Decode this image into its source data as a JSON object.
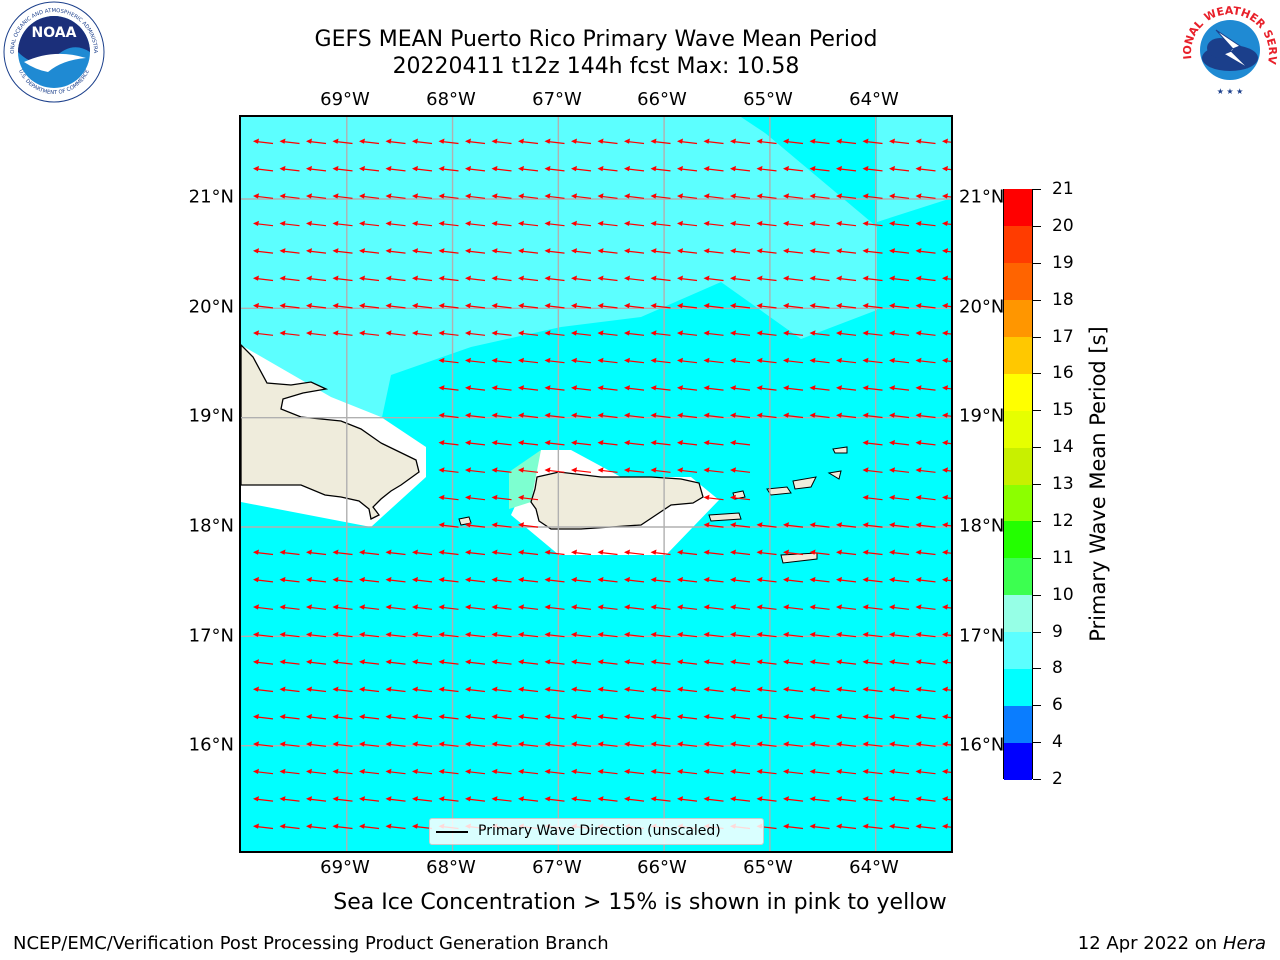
{
  "header": {
    "title_line1": "GEFS MEAN Puerto Rico Primary Wave Mean Period",
    "title_line2": "20220411 t12z 144h fcst   Max: 10.58"
  },
  "logos": {
    "noaa_text": "NOAA",
    "noaa_ring_top": "NATIONAL OCEANIC AND ATMOSPHERIC ADMINISTRATION",
    "noaa_ring_bottom": "U.S. DEPARTMENT OF COMMERCE",
    "nws_ring": "NATIONAL WEATHER SERVICE"
  },
  "map": {
    "lon_labels": [
      "69°W",
      "68°W",
      "67°W",
      "66°W",
      "65°W",
      "64°W"
    ],
    "lat_labels": [
      "21°N",
      "20°N",
      "19°N",
      "18°N",
      "17°N",
      "16°N"
    ],
    "lon_range": [
      -70.0,
      -63.25
    ],
    "lat_range": [
      15.0,
      21.75
    ],
    "grid_lons": [
      -69,
      -68,
      -67,
      -66,
      -65,
      -64
    ],
    "grid_lats": [
      21,
      20,
      19,
      18,
      17,
      16
    ],
    "ocean_color": "#00ffff",
    "swell_color": "#5cffff",
    "land_color": "#efecdc",
    "arrow_color": "#ff0000",
    "grid_color": "#b0b0b0",
    "arrow_direction": "westward",
    "legend_label": "Primary Wave Direction (unscaled)"
  },
  "colorbar": {
    "title": "Primary Wave Mean Period [s]",
    "tick_labels": [
      "2",
      "4",
      "6",
      "8",
      "9",
      "10",
      "11",
      "12",
      "13",
      "14",
      "15",
      "16",
      "17",
      "18",
      "19",
      "20",
      "21"
    ],
    "colors": [
      "#0000ff",
      "#0a7dff",
      "#00ffff",
      "#5cffff",
      "#96ffe6",
      "#3cff50",
      "#23ff00",
      "#8cff00",
      "#c8f000",
      "#e6ff00",
      "#ffff00",
      "#ffc800",
      "#ff9600",
      "#ff6400",
      "#ff3c00",
      "#ff0000"
    ]
  },
  "notes": {
    "ice_note": "Sea Ice Concentration > 15% is shown in pink to yellow",
    "footer_left": "NCEP/EMC/Verification Post Processing Product Generation Branch",
    "footer_date": "12 Apr 2022 on ",
    "footer_host": "Hera"
  }
}
